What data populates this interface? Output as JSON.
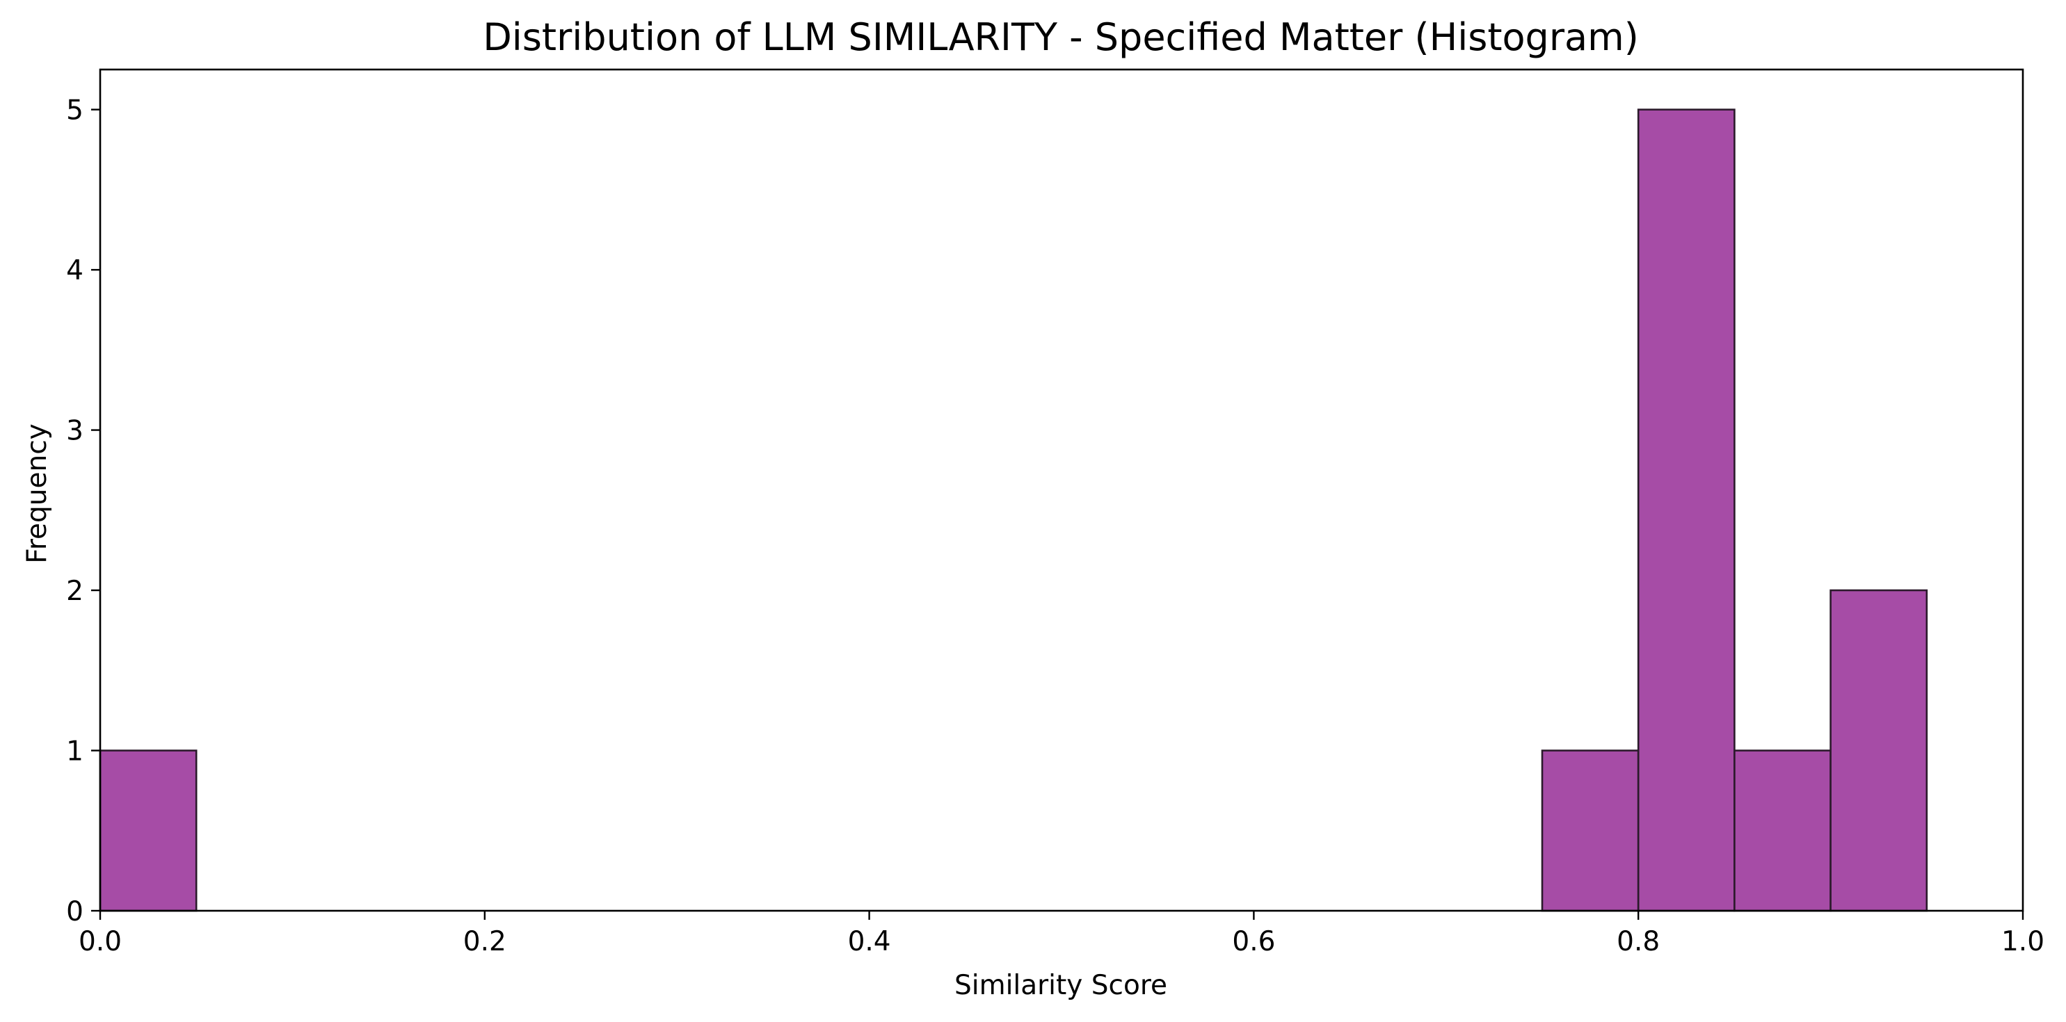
{
  "chart_data": {
    "type": "bar",
    "title": "Distribution of LLM SIMILARITY - Specified Matter (Histogram)",
    "xlabel": "Similarity Score",
    "ylabel": "Frequency",
    "xlim": [
      0.0,
      1.0
    ],
    "ylim": [
      0,
      5.25
    ],
    "xticks": [
      "0.0",
      "0.2",
      "0.4",
      "0.6",
      "0.8",
      "1.0"
    ],
    "yticks": [
      "0",
      "1",
      "2",
      "3",
      "4",
      "5"
    ],
    "bins": [
      {
        "start": 0.0,
        "end": 0.05,
        "count": 1
      },
      {
        "start": 0.75,
        "end": 0.8,
        "count": 1
      },
      {
        "start": 0.8,
        "end": 0.85,
        "count": 5
      },
      {
        "start": 0.85,
        "end": 0.9,
        "count": 1
      },
      {
        "start": 0.9,
        "end": 0.95,
        "count": 2
      }
    ],
    "bar_color": "#a64ca6",
    "edge_color": "#2b1a2b",
    "grid": false
  }
}
